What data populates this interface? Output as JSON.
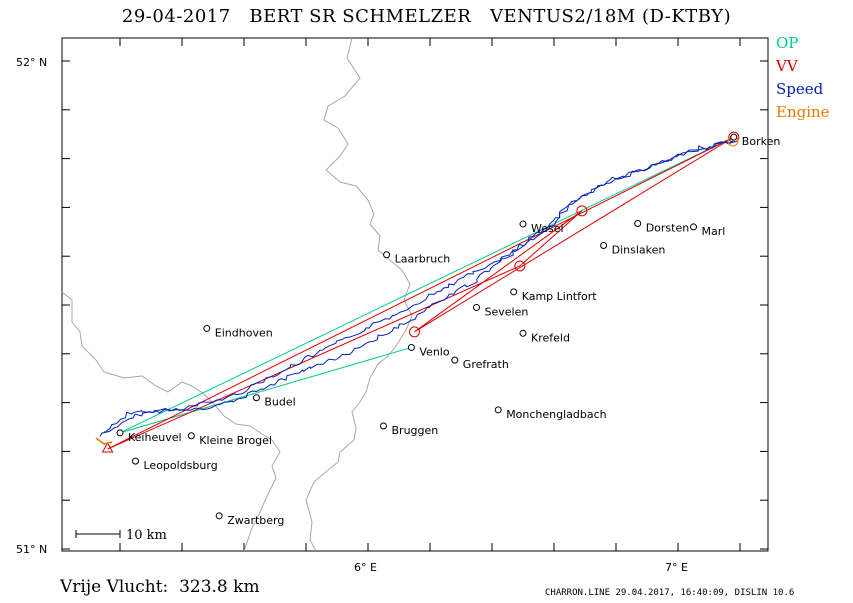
{
  "title": "29-04-2017   BERT SR SCHMELZER   VENTUS2/18M (D-KTBY)",
  "legend": [
    {
      "label": "OP",
      "color": "#00cc88"
    },
    {
      "label": "VV",
      "color": "#dd0000"
    },
    {
      "label": "Speed",
      "color": "#0022bb"
    },
    {
      "label": "Engine",
      "color": "#ee7700"
    }
  ],
  "axes": {
    "lat_labels": [
      "52° N",
      "51° N"
    ],
    "lon_labels": [
      "6° E",
      "7° E"
    ]
  },
  "scale_bar": "10 km",
  "distance_text": "Vrije Vlucht:  323.8 km",
  "footer": "CHARRON.LINE 29.04.2017, 16:40:09, DISLIN 10.6",
  "places": [
    {
      "name": "Borken",
      "lon": 7.18,
      "lat": 51.844
    },
    {
      "name": "Wesel",
      "lon": 6.5,
      "lat": 51.666
    },
    {
      "name": "Dorsten",
      "lon": 6.87,
      "lat": 51.667
    },
    {
      "name": "Marl",
      "lon": 7.05,
      "lat": 51.66
    },
    {
      "name": "Dinslaken",
      "lon": 6.76,
      "lat": 51.622
    },
    {
      "name": "Laarbruch",
      "lon": 6.06,
      "lat": 51.603
    },
    {
      "name": "Kamp Lintfort",
      "lon": 6.47,
      "lat": 51.527
    },
    {
      "name": "Sevelen",
      "lon": 6.35,
      "lat": 51.495
    },
    {
      "name": "Eindhoven",
      "lon": 5.48,
      "lat": 51.452
    },
    {
      "name": "Krefeld",
      "lon": 6.5,
      "lat": 51.442
    },
    {
      "name": "Venlo",
      "lon": 6.14,
      "lat": 51.413
    },
    {
      "name": "Grefrath",
      "lon": 6.28,
      "lat": 51.387
    },
    {
      "name": "Budel",
      "lon": 5.64,
      "lat": 51.31
    },
    {
      "name": "Monchengladbach",
      "lon": 6.42,
      "lat": 51.285
    },
    {
      "name": "Bruggen",
      "lon": 6.05,
      "lat": 51.252
    },
    {
      "name": "Keiheuvel",
      "lon": 5.2,
      "lat": 51.238
    },
    {
      "name": "Kleine Brogel",
      "lon": 5.43,
      "lat": 51.232
    },
    {
      "name": "Leopoldsburg",
      "lon": 5.25,
      "lat": 51.18
    },
    {
      "name": "Zwartberg",
      "lon": 5.52,
      "lat": 51.068
    }
  ],
  "task": {
    "op_legs": [
      {
        "from": "Keiheuvel",
        "to": "Borken"
      },
      {
        "from": "Keiheuvel",
        "to": "Venlo"
      }
    ],
    "vv_turnpoints": [
      {
        "lon": 5.16,
        "lat": 51.205
      },
      {
        "lon": 7.18,
        "lat": 51.844
      },
      {
        "lon": 6.15,
        "lat": 51.445
      },
      {
        "lon": 6.69,
        "lat": 51.693
      },
      {
        "lon": 6.49,
        "lat": 51.58
      },
      {
        "lon": 5.16,
        "lat": 51.205
      }
    ]
  }
}
